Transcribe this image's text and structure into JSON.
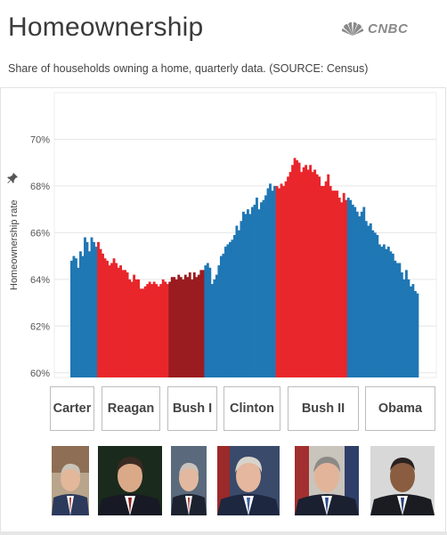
{
  "header": {
    "title": "Homeownership",
    "subtitle": "Share of households owning a home, quarterly data. (SOURCE: Census)",
    "logo_text": "CNBC"
  },
  "colors": {
    "democrat": "#1f77b4",
    "republican": "#e8262b",
    "bush_i": "#9b1c20",
    "grid": "#e6e6e6"
  },
  "chart_data": {
    "type": "bar",
    "title": "Homeownership",
    "subtitle": "Share of households owning a home, quarterly data. (SOURCE: Census)",
    "ylabel": "Homeownership rate",
    "ylim": [
      59.8,
      72.0
    ],
    "yticks": [
      "60%",
      "62%",
      "64%",
      "66%",
      "68%",
      "70%"
    ],
    "grid": true,
    "series": [
      {
        "name": "Carter",
        "color": "#1f77b4",
        "values": [
          64.8,
          65.0,
          64.9,
          64.5,
          65.2,
          65.0,
          65.8,
          65.6,
          65.2,
          65.8,
          65.6,
          65.4
        ]
      },
      {
        "name": "Reagan",
        "color": "#e8262b",
        "values": [
          65.6,
          65.3,
          65.1,
          64.9,
          64.8,
          64.6,
          64.7,
          64.9,
          64.7,
          64.5,
          64.6,
          64.4,
          64.4,
          64.3,
          64.0,
          63.9,
          64.2,
          64.0,
          64.0,
          63.6,
          63.6,
          63.7,
          63.8,
          63.9,
          63.8,
          63.9,
          63.8,
          63.7,
          63.8,
          64.0,
          63.9,
          63.8
        ]
      },
      {
        "name": "Bush I",
        "color": "#9b1c20",
        "values": [
          63.9,
          64.1,
          64.1,
          64.0,
          64.2,
          64.1,
          64.0,
          64.2,
          64.1,
          64.3,
          64.0,
          64.3,
          64.1,
          64.2,
          64.4,
          64.4
        ]
      },
      {
        "name": "Clinton",
        "color": "#1f77b4",
        "values": [
          64.6,
          64.7,
          64.5,
          63.8,
          64.0,
          64.2,
          64.6,
          65.0,
          65.1,
          65.4,
          65.5,
          65.6,
          65.7,
          65.9,
          66.3,
          66.1,
          66.5,
          66.9,
          66.8,
          67.0,
          66.8,
          67.1,
          67.2,
          67.5,
          67.0,
          67.3,
          67.4,
          67.6,
          67.9,
          68.1,
          67.8,
          68.0
        ]
      },
      {
        "name": "Bush II",
        "color": "#e8262b",
        "values": [
          68.0,
          67.9,
          68.1,
          68.0,
          68.2,
          68.4,
          68.6,
          68.9,
          69.2,
          69.1,
          69.0,
          68.6,
          68.8,
          68.9,
          68.7,
          68.9,
          68.6,
          68.7,
          68.5,
          68.4,
          68.0,
          68.0,
          68.2,
          68.5,
          68.0,
          67.8,
          67.8,
          67.8,
          67.5,
          67.3,
          67.7,
          67.4
        ]
      },
      {
        "name": "Obama",
        "color": "#1f77b4",
        "values": [
          67.5,
          67.4,
          67.2,
          67.1,
          66.9,
          66.7,
          66.9,
          67.1,
          66.5,
          66.3,
          66.4,
          66.1,
          66.0,
          65.9,
          65.5,
          65.4,
          65.5,
          65.3,
          65.4,
          65.2,
          65.1,
          64.8,
          64.7,
          64.7,
          64.3,
          64.0,
          64.4,
          64.0,
          63.7,
          63.8,
          63.5,
          63.4
        ]
      }
    ]
  },
  "presidents": [
    {
      "label": "Carter"
    },
    {
      "label": "Reagan"
    },
    {
      "label": "Bush I"
    },
    {
      "label": "Clinton"
    },
    {
      "label": "Bush II"
    },
    {
      "label": "Obama"
    }
  ]
}
